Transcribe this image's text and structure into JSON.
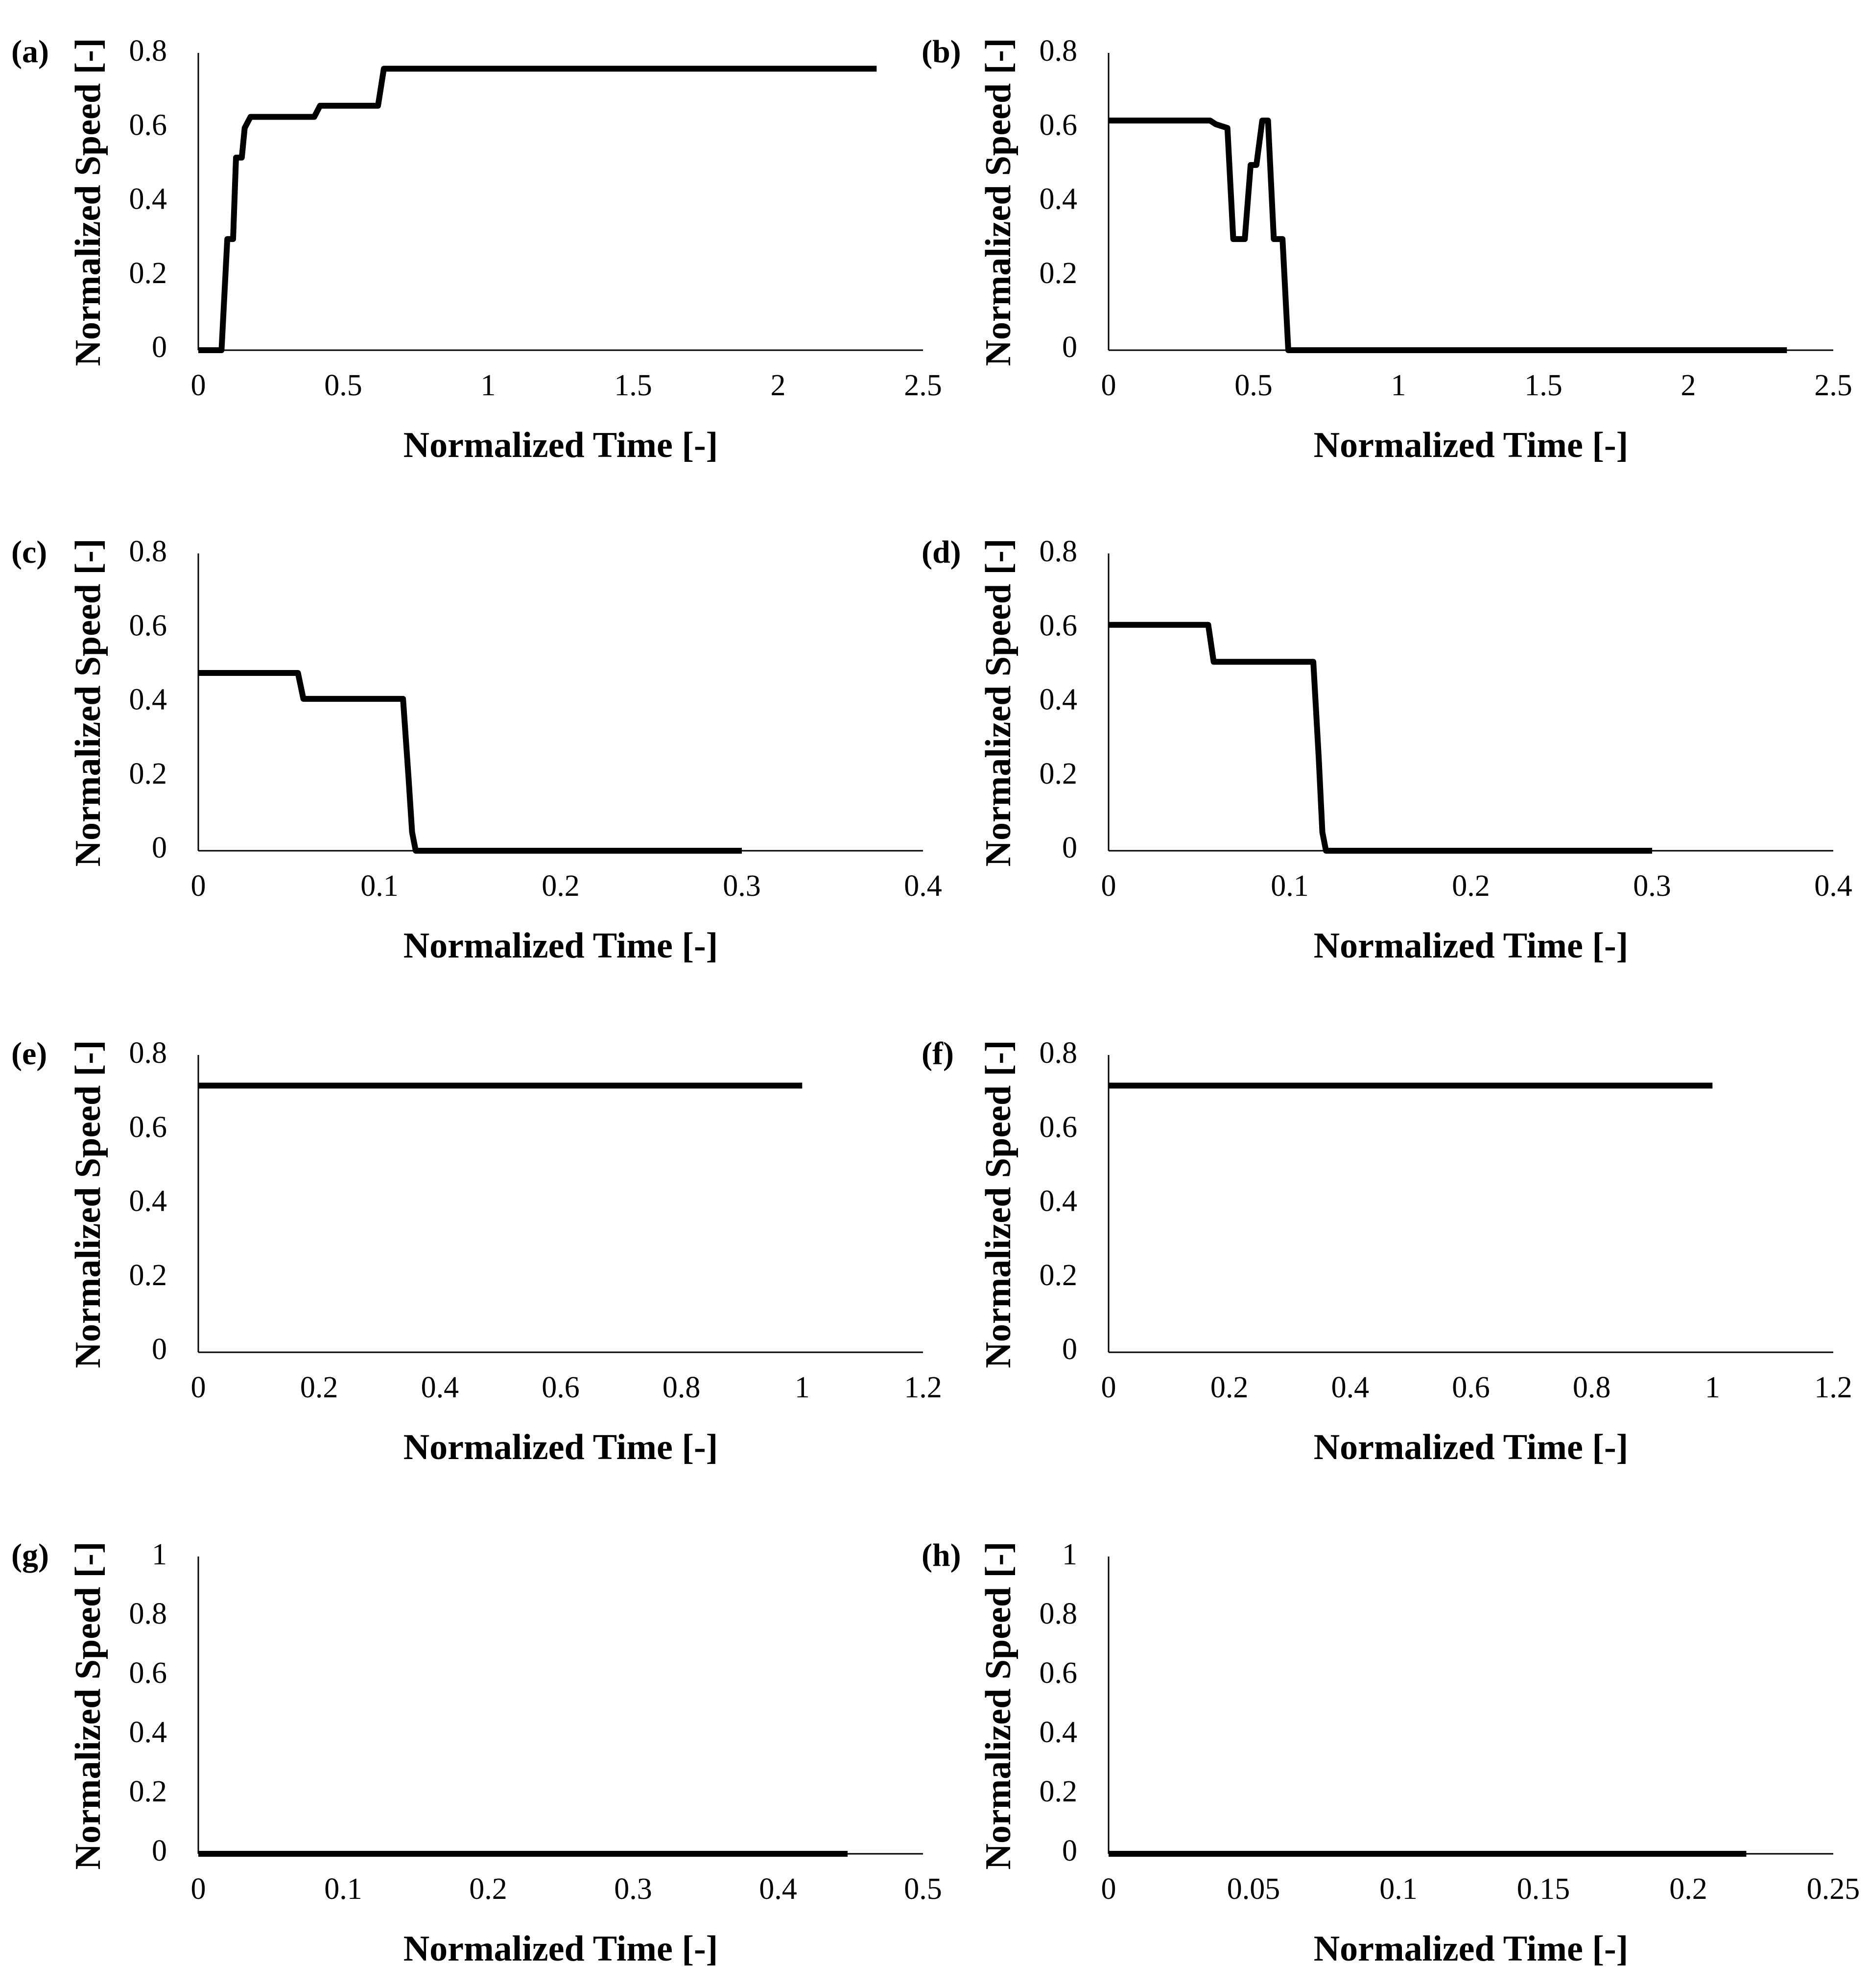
{
  "figure": {
    "description_panels": [
      "a",
      "b",
      "c",
      "d",
      "e",
      "f",
      "g",
      "h"
    ]
  },
  "chart_data": [
    {
      "type": "line",
      "panel_label": "(a)",
      "xlabel": "Normalized Time [-]",
      "ylabel": "Normalized Speed [-]",
      "xlim": [
        0,
        2.5
      ],
      "ylim": [
        0,
        0.8
      ],
      "x_ticks": [
        0,
        0.5,
        1,
        1.5,
        2,
        2.5
      ],
      "x_tick_labels": [
        "0",
        "0.5",
        "1",
        "1.5",
        "2",
        "2.5"
      ],
      "y_ticks": [
        0,
        0.2,
        0.4,
        0.6,
        0.8
      ],
      "y_tick_labels": [
        "0",
        "0.2",
        "0.4",
        "0.6",
        "0.8"
      ],
      "series": [
        {
          "name": "speed",
          "x": [
            0,
            0.08,
            0.1,
            0.12,
            0.13,
            0.15,
            0.16,
            0.18,
            0.4,
            0.42,
            0.62,
            0.64,
            2.34
          ],
          "y": [
            0,
            0,
            0.3,
            0.3,
            0.52,
            0.52,
            0.6,
            0.63,
            0.63,
            0.66,
            0.66,
            0.76,
            0.76
          ]
        }
      ]
    },
    {
      "type": "line",
      "panel_label": "(b)",
      "xlabel": "Normalized Time [-]",
      "ylabel": "Normalized Speed [-]",
      "xlim": [
        0,
        2.5
      ],
      "ylim": [
        0,
        0.8
      ],
      "x_ticks": [
        0,
        0.5,
        1,
        1.5,
        2,
        2.5
      ],
      "x_tick_labels": [
        "0",
        "0.5",
        "1",
        "1.5",
        "2",
        "2.5"
      ],
      "y_ticks": [
        0,
        0.2,
        0.4,
        0.6,
        0.8
      ],
      "y_tick_labels": [
        "0",
        "0.2",
        "0.4",
        "0.6",
        "0.8"
      ],
      "series": [
        {
          "name": "speed",
          "x": [
            0,
            0.35,
            0.37,
            0.41,
            0.43,
            0.47,
            0.49,
            0.51,
            0.53,
            0.55,
            0.57,
            0.6,
            0.62,
            2.34
          ],
          "y": [
            0.62,
            0.62,
            0.61,
            0.6,
            0.3,
            0.3,
            0.5,
            0.5,
            0.62,
            0.62,
            0.3,
            0.3,
            0,
            0
          ]
        }
      ]
    },
    {
      "type": "line",
      "panel_label": "(c)",
      "xlabel": "Normalized Time [-]",
      "ylabel": "Normalized Speed [-]",
      "xlim": [
        0,
        0.4
      ],
      "ylim": [
        0,
        0.8
      ],
      "x_ticks": [
        0,
        0.1,
        0.2,
        0.3,
        0.4
      ],
      "x_tick_labels": [
        "0",
        "0.1",
        "0.2",
        "0.3",
        "0.4"
      ],
      "y_ticks": [
        0,
        0.2,
        0.4,
        0.6,
        0.8
      ],
      "y_tick_labels": [
        "0",
        "0.2",
        "0.4",
        "0.6",
        "0.8"
      ],
      "series": [
        {
          "name": "speed",
          "x": [
            0,
            0.055,
            0.058,
            0.113,
            0.116,
            0.118,
            0.12,
            0.3
          ],
          "y": [
            0.48,
            0.48,
            0.41,
            0.41,
            0.2,
            0.05,
            0,
            0
          ]
        }
      ]
    },
    {
      "type": "line",
      "panel_label": "(d)",
      "xlabel": "Normalized Time [-]",
      "ylabel": "Normalized Speed [-]",
      "xlim": [
        0,
        0.4
      ],
      "ylim": [
        0,
        0.8
      ],
      "x_ticks": [
        0,
        0.1,
        0.2,
        0.3,
        0.4
      ],
      "x_tick_labels": [
        "0",
        "0.1",
        "0.2",
        "0.3",
        "0.4"
      ],
      "y_ticks": [
        0,
        0.2,
        0.4,
        0.6,
        0.8
      ],
      "y_tick_labels": [
        "0",
        "0.2",
        "0.4",
        "0.6",
        "0.8"
      ],
      "series": [
        {
          "name": "speed",
          "x": [
            0,
            0.055,
            0.058,
            0.113,
            0.116,
            0.118,
            0.12,
            0.3
          ],
          "y": [
            0.61,
            0.61,
            0.51,
            0.51,
            0.25,
            0.05,
            0,
            0
          ]
        }
      ]
    },
    {
      "type": "line",
      "panel_label": "(e)",
      "xlabel": "Normalized Time [-]",
      "ylabel": "Normalized Speed [-]",
      "xlim": [
        0,
        1.2
      ],
      "ylim": [
        0,
        0.8
      ],
      "x_ticks": [
        0,
        0.2,
        0.4,
        0.6,
        0.8,
        1,
        1.2
      ],
      "x_tick_labels": [
        "0",
        "0.2",
        "0.4",
        "0.6",
        "0.8",
        "1",
        "1.2"
      ],
      "y_ticks": [
        0,
        0.2,
        0.4,
        0.6,
        0.8
      ],
      "y_tick_labels": [
        "0",
        "0.2",
        "0.4",
        "0.6",
        "0.8"
      ],
      "series": [
        {
          "name": "speed",
          "x": [
            0,
            1.0
          ],
          "y": [
            0.72,
            0.72
          ]
        }
      ]
    },
    {
      "type": "line",
      "panel_label": "(f)",
      "xlabel": "Normalized Time [-]",
      "ylabel": "Normalized Speed [-]",
      "xlim": [
        0,
        1.2
      ],
      "ylim": [
        0,
        0.8
      ],
      "x_ticks": [
        0,
        0.2,
        0.4,
        0.6,
        0.8,
        1,
        1.2
      ],
      "x_tick_labels": [
        "0",
        "0.2",
        "0.4",
        "0.6",
        "0.8",
        "1",
        "1.2"
      ],
      "y_ticks": [
        0,
        0.2,
        0.4,
        0.6,
        0.8
      ],
      "y_tick_labels": [
        "0",
        "0.2",
        "0.4",
        "0.6",
        "0.8"
      ],
      "series": [
        {
          "name": "speed",
          "x": [
            0,
            1.0
          ],
          "y": [
            0.72,
            0.72
          ]
        }
      ]
    },
    {
      "type": "line",
      "panel_label": "(g)",
      "xlabel": "Normalized Time [-]",
      "ylabel": "Normalized Speed [-]",
      "xlim": [
        0,
        0.5
      ],
      "ylim": [
        0,
        1
      ],
      "x_ticks": [
        0,
        0.1,
        0.2,
        0.3,
        0.4,
        0.5
      ],
      "x_tick_labels": [
        "0",
        "0.1",
        "0.2",
        "0.3",
        "0.4",
        "0.5"
      ],
      "y_ticks": [
        0,
        0.2,
        0.4,
        0.6,
        0.8,
        1
      ],
      "y_tick_labels": [
        "0",
        "0.2",
        "0.4",
        "0.6",
        "0.8",
        "1"
      ],
      "series": [
        {
          "name": "speed",
          "x": [
            0,
            0.448
          ],
          "y": [
            0,
            0
          ]
        }
      ]
    },
    {
      "type": "line",
      "panel_label": "(h)",
      "xlabel": "Normalized Time [-]",
      "ylabel": "Normalized Speed [-]",
      "xlim": [
        0,
        0.25
      ],
      "ylim": [
        0,
        1
      ],
      "x_ticks": [
        0,
        0.05,
        0.1,
        0.15,
        0.2,
        0.25
      ],
      "x_tick_labels": [
        "0",
        "0.05",
        "0.1",
        "0.15",
        "0.2",
        "0.25"
      ],
      "y_ticks": [
        0,
        0.2,
        0.4,
        0.6,
        0.8,
        1
      ],
      "y_tick_labels": [
        "0",
        "0.2",
        "0.4",
        "0.6",
        "0.8",
        "1"
      ],
      "series": [
        {
          "name": "speed",
          "x": [
            0,
            0.22
          ],
          "y": [
            0,
            0
          ]
        }
      ]
    }
  ]
}
